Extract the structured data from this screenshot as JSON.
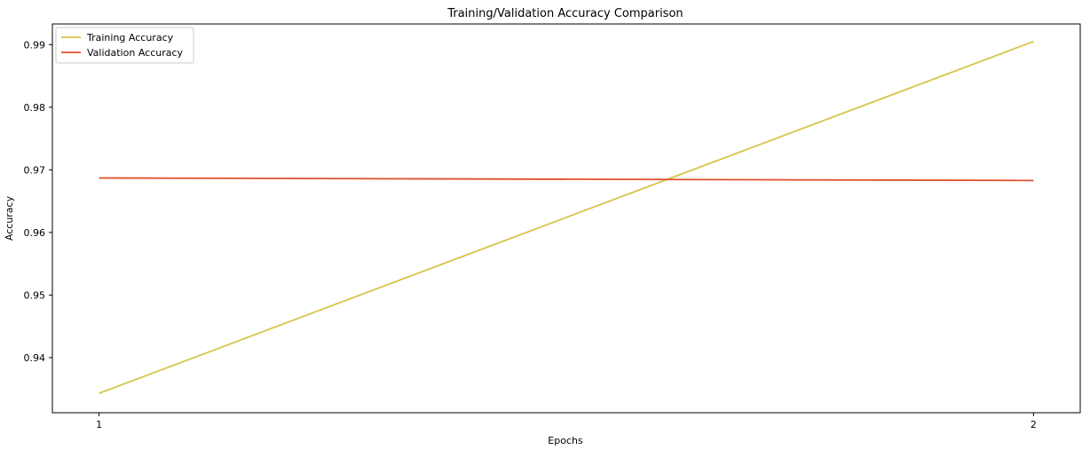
{
  "chart_data": {
    "type": "line",
    "title": "Training/Validation Accuracy Comparison",
    "xlabel": "Epochs",
    "ylabel": "Accuracy",
    "x": [
      1,
      2
    ],
    "xticks": [
      1,
      2
    ],
    "yticks": [
      0.94,
      0.95,
      0.96,
      0.97,
      0.98,
      0.99
    ],
    "xlim": [
      0.95,
      2.05
    ],
    "ylim": [
      0.9312,
      0.9933
    ],
    "grid": false,
    "legend_position": "top-left",
    "series": [
      {
        "name": "Training Accuracy",
        "color": "#d4c64a",
        "values": [
          0.9343,
          0.9905
        ]
      },
      {
        "name": "Validation Accuracy",
        "color": "#e0502a",
        "values": [
          0.9687,
          0.9683
        ]
      }
    ]
  }
}
